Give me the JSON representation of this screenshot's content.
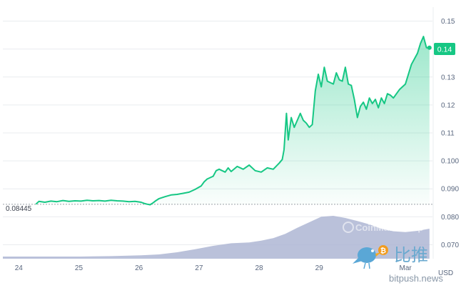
{
  "chart_data": {
    "type": "area",
    "unit": "USD",
    "colors": {
      "price_line": "#16c784",
      "price_fill": "#16c784",
      "volume_fill": "#aeb6d3",
      "grid": "#e9ecef",
      "reference": "#9aa0a6",
      "last_tag_bg": "#16c784",
      "axis_text": "#58667e"
    },
    "x_ticks": [
      "24",
      "25",
      "26",
      "27",
      "28",
      "29",
      "Mar"
    ],
    "y_ticks": [
      0.15,
      0.14,
      0.13,
      0.12,
      0.11,
      0.1,
      0.09,
      0.08,
      0.07
    ],
    "y_tick_labels": [
      "0.15",
      "",
      "0.13",
      "0.12",
      "0.11",
      "0.100",
      "0.090",
      "0.080",
      "0.070"
    ],
    "ylim": [
      0.065,
      0.155
    ],
    "xlim": [
      23.7,
      30.85
    ],
    "open_price": 0.08445,
    "open_price_label": "0.08445",
    "last_price": 0.14,
    "last_price_label": "0.14",
    "price_series": {
      "x": [
        24.25,
        24.3,
        24.4,
        24.5,
        24.6,
        24.7,
        24.8,
        24.9,
        25.0,
        25.1,
        25.2,
        25.3,
        25.4,
        25.5,
        25.6,
        25.7,
        25.8,
        25.9,
        26.0,
        26.05,
        26.1,
        26.15,
        26.2,
        26.25,
        26.3,
        26.4,
        26.5,
        26.6,
        26.7,
        26.8,
        26.9,
        27.0,
        27.05,
        27.1,
        27.2,
        27.25,
        27.3,
        27.4,
        27.45,
        27.5,
        27.6,
        27.7,
        27.8,
        27.9,
        28.0,
        28.1,
        28.2,
        28.3,
        28.35,
        28.38,
        28.42,
        28.45,
        28.5,
        28.55,
        28.6,
        28.65,
        28.7,
        28.75,
        28.8,
        28.85,
        28.9,
        28.95,
        29.0,
        29.05,
        29.1,
        29.15,
        29.2,
        29.25,
        29.3,
        29.35,
        29.4,
        29.45,
        29.5,
        29.55,
        29.6,
        29.65,
        29.7,
        29.75,
        29.8,
        29.85,
        29.9,
        29.95,
        30.0,
        30.05,
        30.1,
        30.15,
        30.2,
        30.3,
        30.4,
        30.5,
        30.6,
        30.65,
        30.7,
        30.75,
        30.8
      ],
      "y": [
        0.0845,
        0.0855,
        0.0852,
        0.0856,
        0.0854,
        0.0858,
        0.0855,
        0.0857,
        0.0856,
        0.0859,
        0.0857,
        0.0858,
        0.0856,
        0.0859,
        0.0857,
        0.0856,
        0.0854,
        0.0855,
        0.0852,
        0.0848,
        0.0845,
        0.0843,
        0.085,
        0.0858,
        0.0865,
        0.0872,
        0.0878,
        0.088,
        0.0884,
        0.0888,
        0.0898,
        0.091,
        0.0925,
        0.0935,
        0.0945,
        0.0965,
        0.097,
        0.096,
        0.0975,
        0.0962,
        0.098,
        0.097,
        0.0985,
        0.0965,
        0.096,
        0.0975,
        0.097,
        0.0992,
        0.1005,
        0.104,
        0.117,
        0.1075,
        0.1155,
        0.112,
        0.1145,
        0.117,
        0.1145,
        0.1135,
        0.112,
        0.113,
        0.125,
        0.131,
        0.1265,
        0.1335,
        0.1285,
        0.128,
        0.1275,
        0.1315,
        0.129,
        0.1285,
        0.1335,
        0.1275,
        0.127,
        0.122,
        0.1155,
        0.1195,
        0.121,
        0.1185,
        0.1225,
        0.1205,
        0.122,
        0.119,
        0.1225,
        0.1205,
        0.124,
        0.1235,
        0.1225,
        0.1255,
        0.1275,
        0.1345,
        0.1385,
        0.142,
        0.1445,
        0.1405,
        0.1405
      ]
    },
    "volume_series": {
      "x": [
        23.7,
        24.0,
        24.5,
        25.0,
        25.5,
        26.0,
        26.3,
        26.6,
        26.9,
        27.2,
        27.5,
        27.8,
        28.0,
        28.2,
        28.4,
        28.6,
        28.8,
        29.0,
        29.2,
        29.4,
        29.6,
        29.8,
        30.0,
        30.2,
        30.4,
        30.6,
        30.8
      ],
      "v": [
        0.05,
        0.05,
        0.05,
        0.05,
        0.06,
        0.08,
        0.1,
        0.15,
        0.22,
        0.3,
        0.36,
        0.38,
        0.42,
        0.48,
        0.58,
        0.72,
        0.85,
        0.98,
        1.0,
        0.95,
        0.88,
        0.8,
        0.7,
        0.64,
        0.62,
        0.65,
        0.7
      ]
    }
  },
  "watermarks": {
    "cmc_text": "CoinMarketCap",
    "bitpush_text": "比推",
    "bitpush_url": "bitpush.news"
  }
}
